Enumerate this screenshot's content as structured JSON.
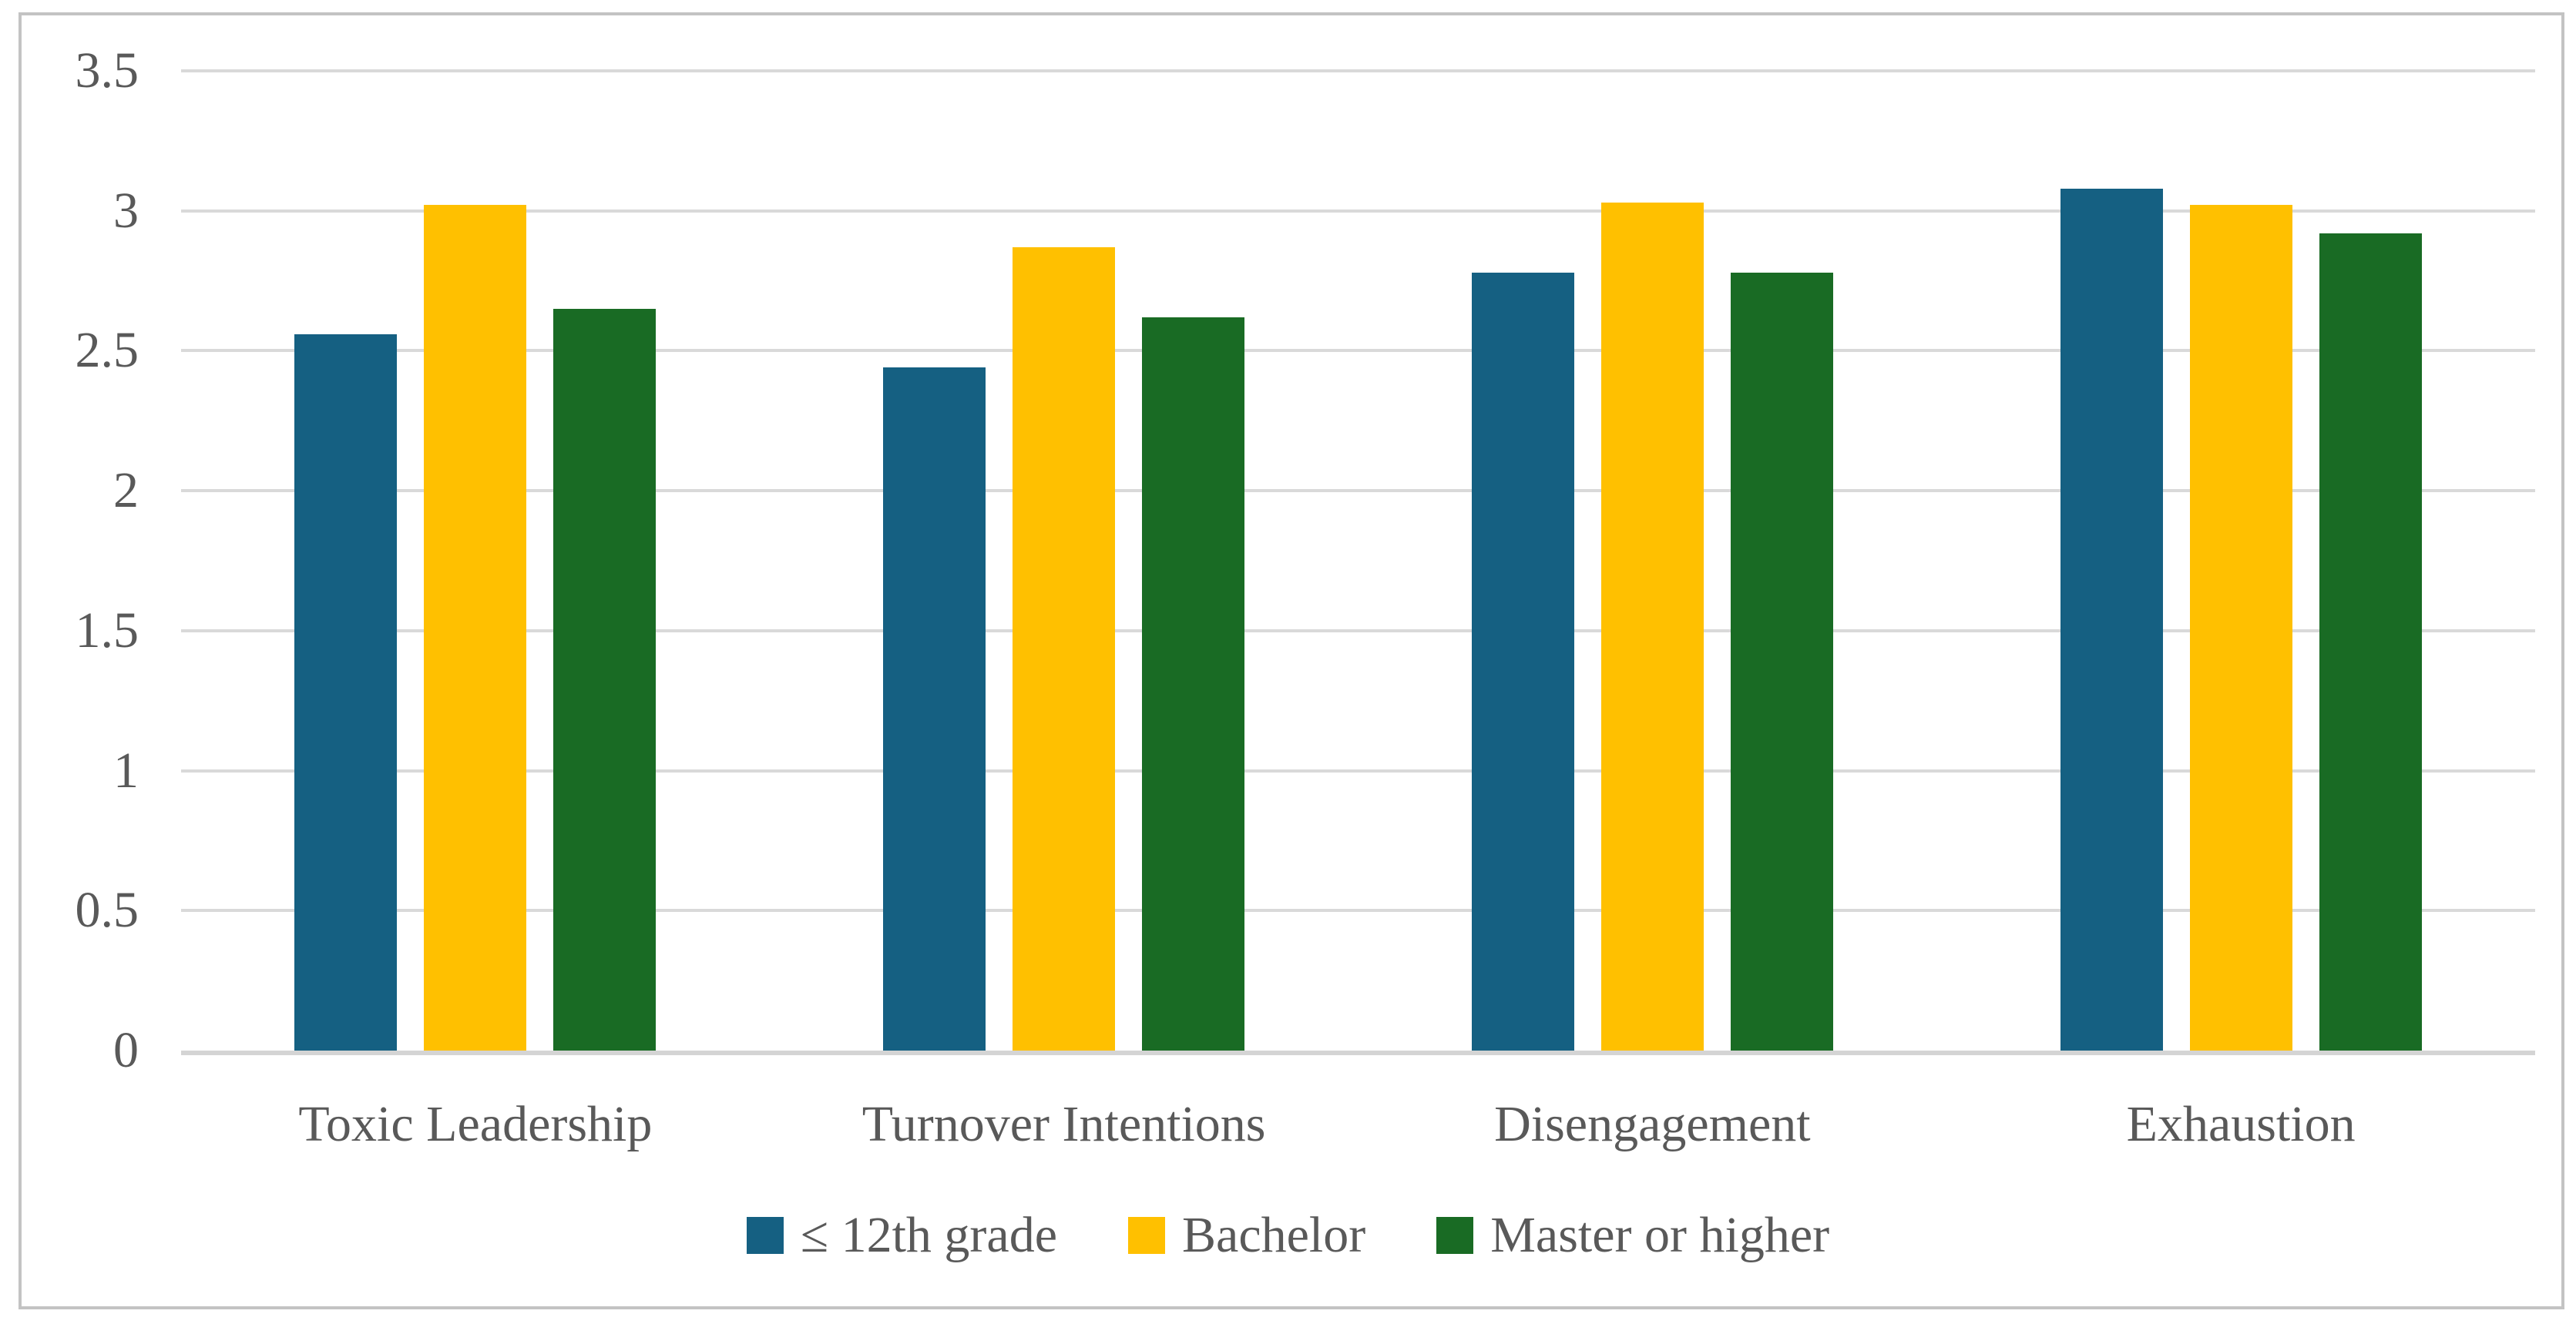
{
  "figure": {
    "kind": "grouped-bar-chart",
    "background": "#ffffff",
    "border_color": "#c3c3c3",
    "text_color": "#595959",
    "gridline_color": "#d9d9d9",
    "axisline_color": "#d4d4d4"
  },
  "chart_data": {
    "type": "bar",
    "title": "",
    "xlabel": "",
    "ylabel": "",
    "categories": [
      "Toxic Leadership",
      "Turnover Intentions",
      "Disengagement",
      "Exhaustion"
    ],
    "series": [
      {
        "name": "≤ 12th grade",
        "color": "#156082",
        "values": [
          2.56,
          2.44,
          2.78,
          3.08
        ]
      },
      {
        "name": "Bachelor",
        "color": "#FFC000",
        "values": [
          3.02,
          2.87,
          3.03,
          3.02
        ]
      },
      {
        "name": "Master or higher",
        "color": "#196B24",
        "values": [
          2.65,
          2.62,
          2.78,
          2.92
        ]
      }
    ],
    "ylim": [
      0,
      3.5
    ],
    "yticks": [
      "0",
      "0.5",
      "1",
      "1.5",
      "2",
      "2.5",
      "3",
      "3.5"
    ],
    "grid": true,
    "legend_position": "bottom"
  }
}
